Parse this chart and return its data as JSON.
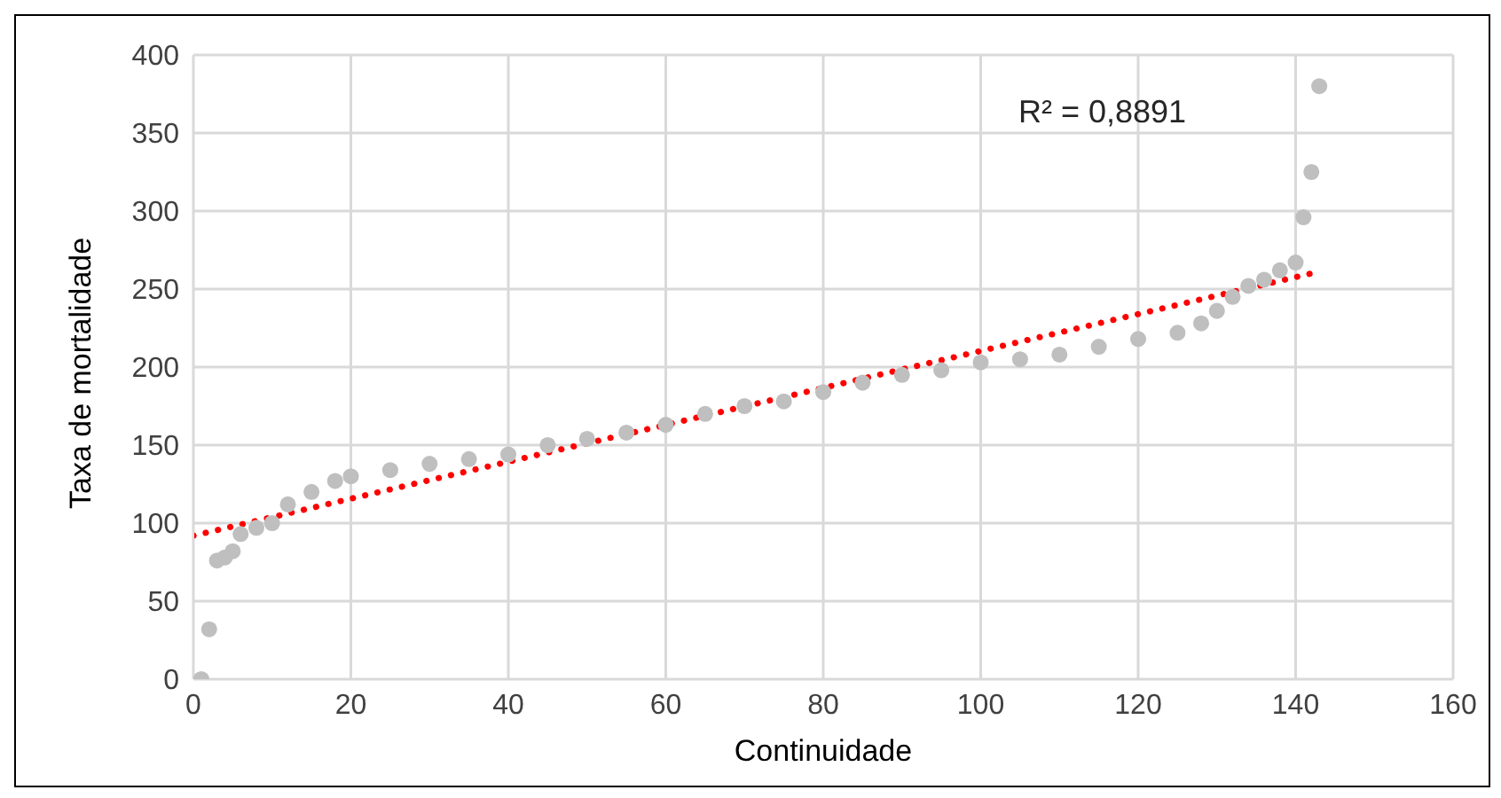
{
  "chart_data": {
    "type": "scatter",
    "xlabel": "Continuidade",
    "ylabel": "Taxa de mortalidade",
    "annotations": [
      "R² = 0,8891"
    ],
    "xlim": [
      0,
      160
    ],
    "xticks": [
      0,
      20,
      40,
      60,
      80,
      100,
      120,
      140,
      160
    ],
    "ylim": [
      0,
      400
    ],
    "yticks": [
      0,
      50,
      100,
      150,
      200,
      250,
      300,
      350,
      400
    ],
    "grid": true,
    "marker": "circle",
    "series": [
      {
        "color": "#bfbfbf",
        "x": [
          1,
          2,
          3,
          4,
          5,
          6,
          8,
          10,
          12,
          15,
          18,
          20,
          25,
          30,
          35,
          40,
          45,
          50,
          55,
          60,
          65,
          70,
          75,
          80,
          85,
          90,
          95,
          100,
          105,
          110,
          115,
          120,
          125,
          128,
          130,
          132,
          134,
          136,
          138,
          140,
          141,
          142,
          143
        ],
        "values": [
          0,
          32,
          76,
          78,
          82,
          93,
          97,
          100,
          112,
          120,
          127,
          130,
          134,
          138,
          141,
          144,
          150,
          154,
          158,
          163,
          170,
          175,
          178,
          184,
          190,
          195,
          198,
          203,
          205,
          208,
          213,
          218,
          222,
          228,
          236,
          245,
          252,
          256,
          262,
          267,
          296,
          325,
          380
        ]
      },
      {
        "type": "line",
        "color": "#ff0000",
        "marker": "none",
        "line_style": "dotted",
        "x": [
          0,
          142
        ],
        "values": [
          92,
          260
        ]
      }
    ]
  }
}
